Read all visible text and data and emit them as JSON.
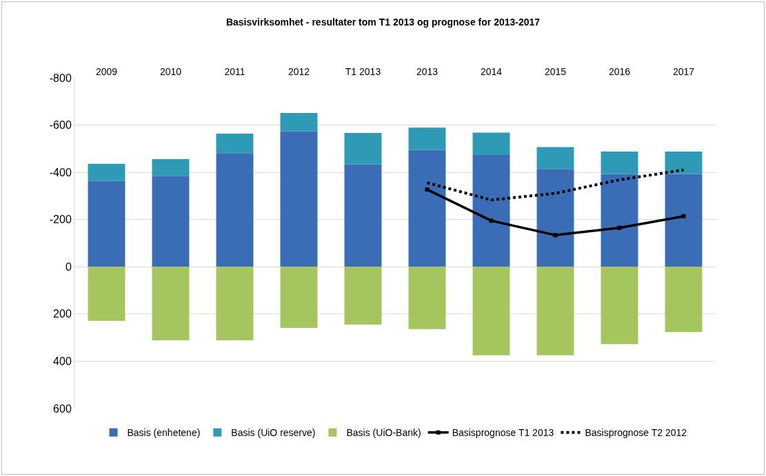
{
  "chart_data": {
    "type": "bar",
    "title": "Basisvirksomhet - resultater tom T1 2013 og prognose for 2013-2017",
    "categories": [
      "2009",
      "2010",
      "2011",
      "2012",
      "T1 2013",
      "2013",
      "2014",
      "2015",
      "2016",
      "2017"
    ],
    "stacked": true,
    "series": [
      {
        "name": "Basis (enhetene)",
        "color": "#3a6db5",
        "values": [
          -363,
          -385,
          -481,
          -573,
          -433,
          -495,
          -473,
          -414,
          -393,
          -393
        ]
      },
      {
        "name": "Basis (UiO reserve)",
        "color": "#2e9ab5",
        "values": [
          -73,
          -71,
          -83,
          -78,
          -134,
          -94,
          -95,
          -93,
          -95,
          -95
        ]
      },
      {
        "name": "Basis (UiO-Bank)",
        "color": "#a5c55f",
        "values": [
          229,
          311,
          311,
          259,
          245,
          264,
          375,
          375,
          327,
          276
        ]
      },
      {
        "name": "Basisprognose T1 2013",
        "type": "line",
        "color": "#000000",
        "marker": "square",
        "line_style": "solid",
        "values": [
          null,
          null,
          null,
          null,
          null,
          -327,
          -195,
          -134,
          -165,
          -214
        ]
      },
      {
        "name": "Basisprognose T2 2012",
        "type": "line",
        "color": "#000000",
        "marker": "none",
        "line_style": "dotted",
        "values": [
          null,
          null,
          null,
          null,
          null,
          -356,
          -283,
          -311,
          -368,
          -410
        ]
      }
    ],
    "ylim": [
      600,
      -800
    ],
    "yticks": [
      -800,
      -600,
      -400,
      -200,
      0,
      200,
      400,
      600
    ],
    "grid": "y",
    "legend": "bottom"
  }
}
